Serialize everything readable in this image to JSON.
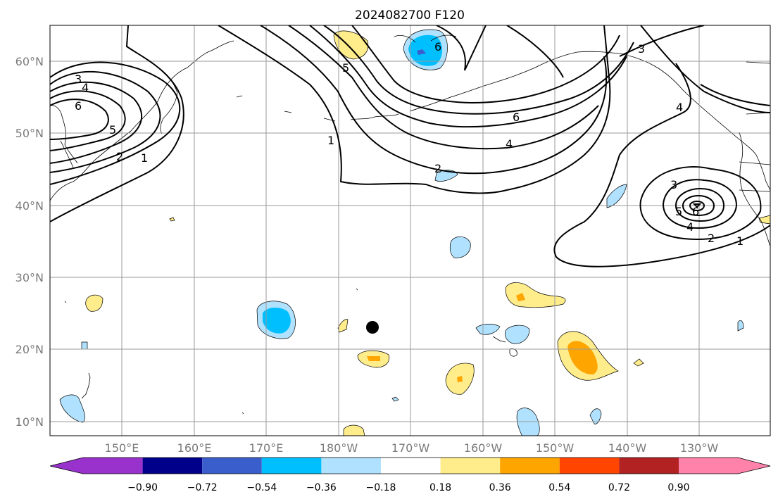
{
  "map": {
    "title": "2024082700 F120",
    "lat_labels": [
      "60°N",
      "50°N",
      "40°N",
      "30°N",
      "20°N",
      "10°N"
    ],
    "lon_labels": [
      "150°E",
      "160°E",
      "170°E",
      "180°W",
      "170°W",
      "160°W",
      "150°W",
      "140°W",
      "130°W"
    ],
    "contour_labels": [
      "3",
      "4",
      "6",
      "5",
      "2",
      "1",
      "5",
      "6",
      "1",
      "6",
      "4",
      "2",
      "3",
      "6",
      "5",
      "4",
      "2",
      "1",
      "3",
      "4"
    ],
    "marker": "storm-center-dot"
  },
  "colorbar": {
    "ticks": [
      "−0.90",
      "−0.72",
      "−0.54",
      "−0.36",
      "−0.18",
      "0.18",
      "0.36",
      "0.54",
      "0.72",
      "0.90"
    ],
    "colors": [
      "#9932CC",
      "#00008B",
      "#3A5FCD",
      "#00BFFF",
      "#B0E2FF",
      "#FFFFFF",
      "#FFEC8B",
      "#FFA500",
      "#FF4500",
      "#B22222",
      "#FF82AB"
    ]
  },
  "colors": {
    "grid": "#9a9a9a",
    "axis_label": "#7a7a7a",
    "contour": "#000000"
  }
}
